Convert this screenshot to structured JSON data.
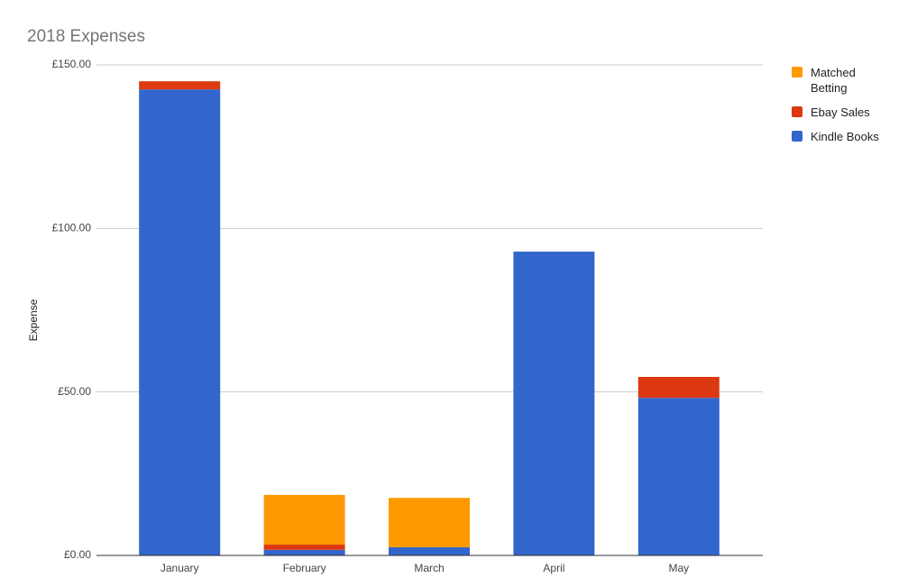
{
  "chart_data": {
    "type": "stacked_bar",
    "title": "2018 Expenses",
    "y_label": "Expense",
    "categories": [
      "January",
      "February",
      "March",
      "April",
      "May"
    ],
    "series": [
      {
        "name": "Matched Betting",
        "color": "#ff9900",
        "values": [
          0,
          15.2,
          15.1,
          0,
          0
        ]
      },
      {
        "name": "Ebay Sales",
        "color": "#dc3912",
        "values": [
          2.5,
          1.6,
          0,
          0,
          6.4
        ]
      },
      {
        "name": "Kindle Books",
        "color": "#3366cc",
        "values": [
          142.5,
          1.7,
          2.5,
          92.9,
          48.2
        ]
      }
    ],
    "ylim": [
      0,
      150
    ],
    "yticks": [
      {
        "value": 0,
        "label": "£0.00"
      },
      {
        "value": 50,
        "label": "£50.00"
      },
      {
        "value": 100,
        "label": "£100.00"
      },
      {
        "value": 150,
        "label": "£150.00"
      }
    ],
    "grid": true
  }
}
